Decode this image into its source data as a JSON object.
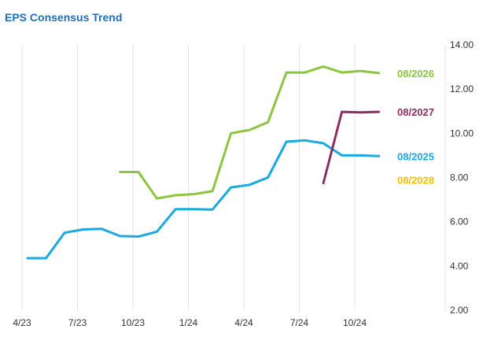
{
  "chart_data": {
    "type": "line",
    "title": "EPS Consensus Trend",
    "x_tick_labels": [
      "4/23",
      "7/23",
      "10/23",
      "1/24",
      "4/24",
      "7/24",
      "10/24"
    ],
    "y_tick_labels": [
      "2.00",
      "4.00",
      "6.00",
      "8.00",
      "10.00",
      "12.00",
      "14.00"
    ],
    "ylim": [
      2,
      14
    ],
    "grid": "vertical",
    "series": [
      {
        "name": "08/2025",
        "color": "#1ba9e1",
        "x": [
          0.3,
          1.3,
          2.3,
          3.3,
          4.3,
          5.3,
          6.3,
          7.3,
          8.3,
          9.3,
          10.3,
          11.3,
          12.3,
          13.3,
          14.3,
          15.3,
          16.3,
          17.3,
          18.3,
          19.3,
          20.3
        ],
        "y": [
          4.35,
          4.35,
          5.5,
          5.65,
          5.68,
          5.35,
          5.33,
          5.55,
          6.57,
          6.57,
          6.55,
          7.55,
          7.67,
          8.0,
          9.62,
          9.68,
          9.55,
          9.0,
          9.0,
          8.97,
          null
        ]
      },
      {
        "name": "08/2026",
        "color": "#8cc63f",
        "x": [
          5.3,
          6.3,
          7.3,
          8.3,
          9.3,
          10.3,
          11.3,
          12.3,
          13.3,
          14.3,
          15.3,
          16.3,
          17.3,
          18.3,
          19.3
        ],
        "y": [
          8.25,
          8.25,
          7.05,
          7.2,
          7.25,
          7.38,
          10.0,
          10.15,
          10.5,
          12.75,
          12.75,
          13.02,
          12.75,
          12.82,
          12.72
        ]
      },
      {
        "name": "08/2027",
        "color": "#8b2f5f",
        "x": [
          16.3,
          17.3,
          18.3,
          19.3
        ],
        "y": [
          7.75,
          10.97,
          10.95,
          10.97
        ]
      },
      {
        "name": "08/2028",
        "color": "#f2c100",
        "x": [],
        "y": []
      }
    ]
  }
}
